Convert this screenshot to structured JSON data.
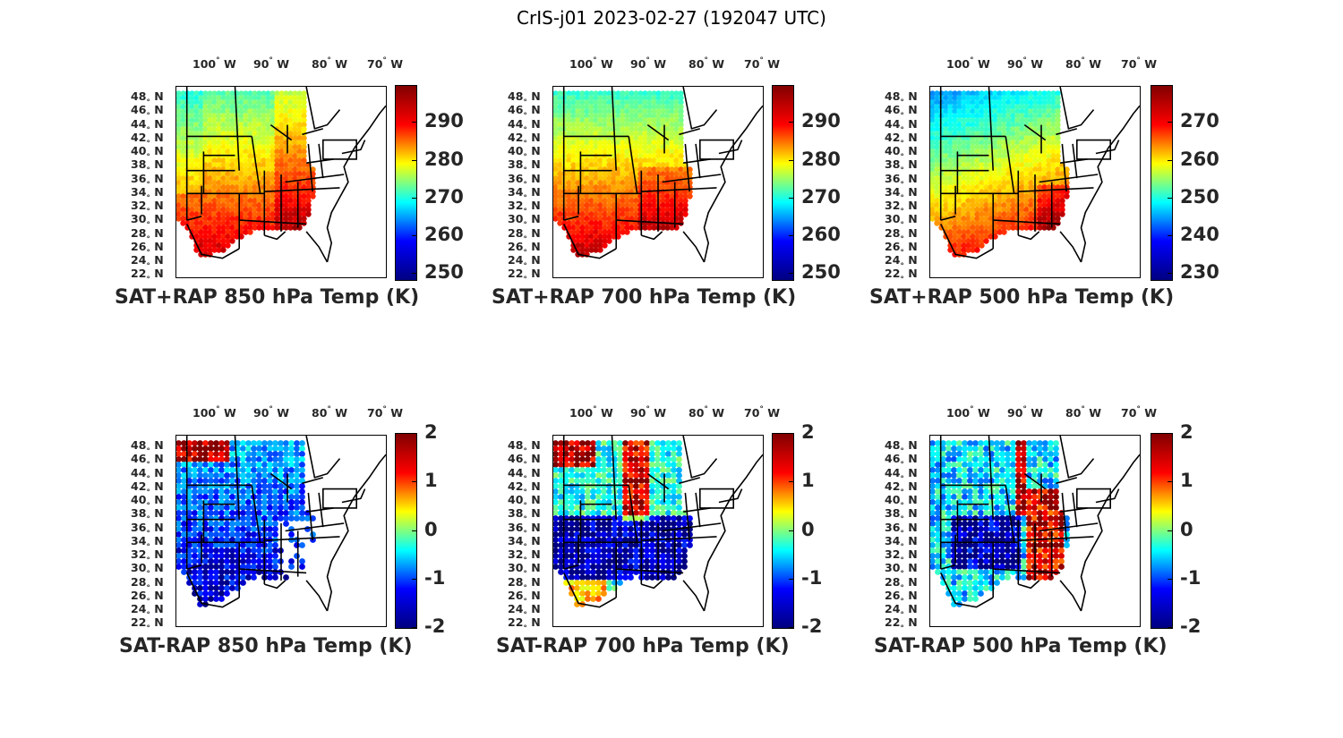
{
  "title": "CrIS-j01 2023-02-27 (192047 UTC)",
  "colors": {
    "jet_low": "#00008f",
    "jet_high": "#800000",
    "frame": "#000000"
  },
  "lon_labels": [
    "100",
    "90",
    "80",
    "70"
  ],
  "lon_unit": "W",
  "lat_labels": [
    "48",
    "46",
    "44",
    "42",
    "40",
    "38",
    "36",
    "34",
    "32",
    "30",
    "28",
    "26",
    "24",
    "22"
  ],
  "lat_unit": "N",
  "panels": [
    {
      "title": "SAT+RAP 850 hPa Temp (K)",
      "cbar_ticks": [
        "290",
        "280",
        "270",
        "260",
        "250"
      ],
      "kind": "temp850"
    },
    {
      "title": "SAT+RAP 700 hPa Temp (K)",
      "cbar_ticks": [
        "290",
        "280",
        "270",
        "260",
        "250"
      ],
      "kind": "temp700"
    },
    {
      "title": "SAT+RAP 500 hPa Temp (K)",
      "cbar_ticks": [
        "270",
        "260",
        "250",
        "240",
        "230"
      ],
      "kind": "temp500"
    },
    {
      "title": "SAT-RAP 850 hPa Temp (K)",
      "cbar_ticks": [
        "2",
        "1",
        "0",
        "-1",
        "-2"
      ],
      "kind": "diff850"
    },
    {
      "title": "SAT-RAP 700 hPa Temp (K)",
      "cbar_ticks": [
        "2",
        "1",
        "0",
        "-1",
        "-2"
      ],
      "kind": "diff700"
    },
    {
      "title": "SAT-RAP 500 hPa Temp (K)",
      "cbar_ticks": [
        "2",
        "1",
        "0",
        "-1",
        "-2"
      ],
      "kind": "diff500"
    }
  ]
}
